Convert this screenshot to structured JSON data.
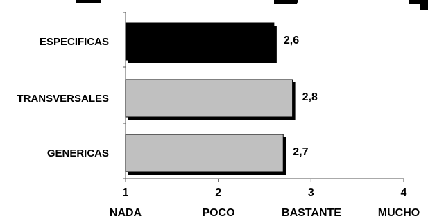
{
  "chart_data": {
    "type": "bar",
    "orientation": "horizontal",
    "categories": [
      "ESPECIFICAS",
      "TRANSVERSALES",
      "GENERICAS"
    ],
    "values": [
      2.6,
      2.8,
      2.7
    ],
    "value_labels": [
      "2,6",
      "2,8",
      "2,7"
    ],
    "bar_colors": [
      "#000000",
      "#c0c0c0",
      "#c0c0c0"
    ],
    "xlim": [
      1,
      4
    ],
    "x_ticks": [
      1,
      2,
      3,
      4
    ],
    "x_tick_labels": [
      "1",
      "2",
      "3",
      "4"
    ],
    "x_tick_words": [
      "NADA",
      "POCO",
      "BASTANTE",
      "MUCHO"
    ],
    "grid": false,
    "legend": "none"
  }
}
